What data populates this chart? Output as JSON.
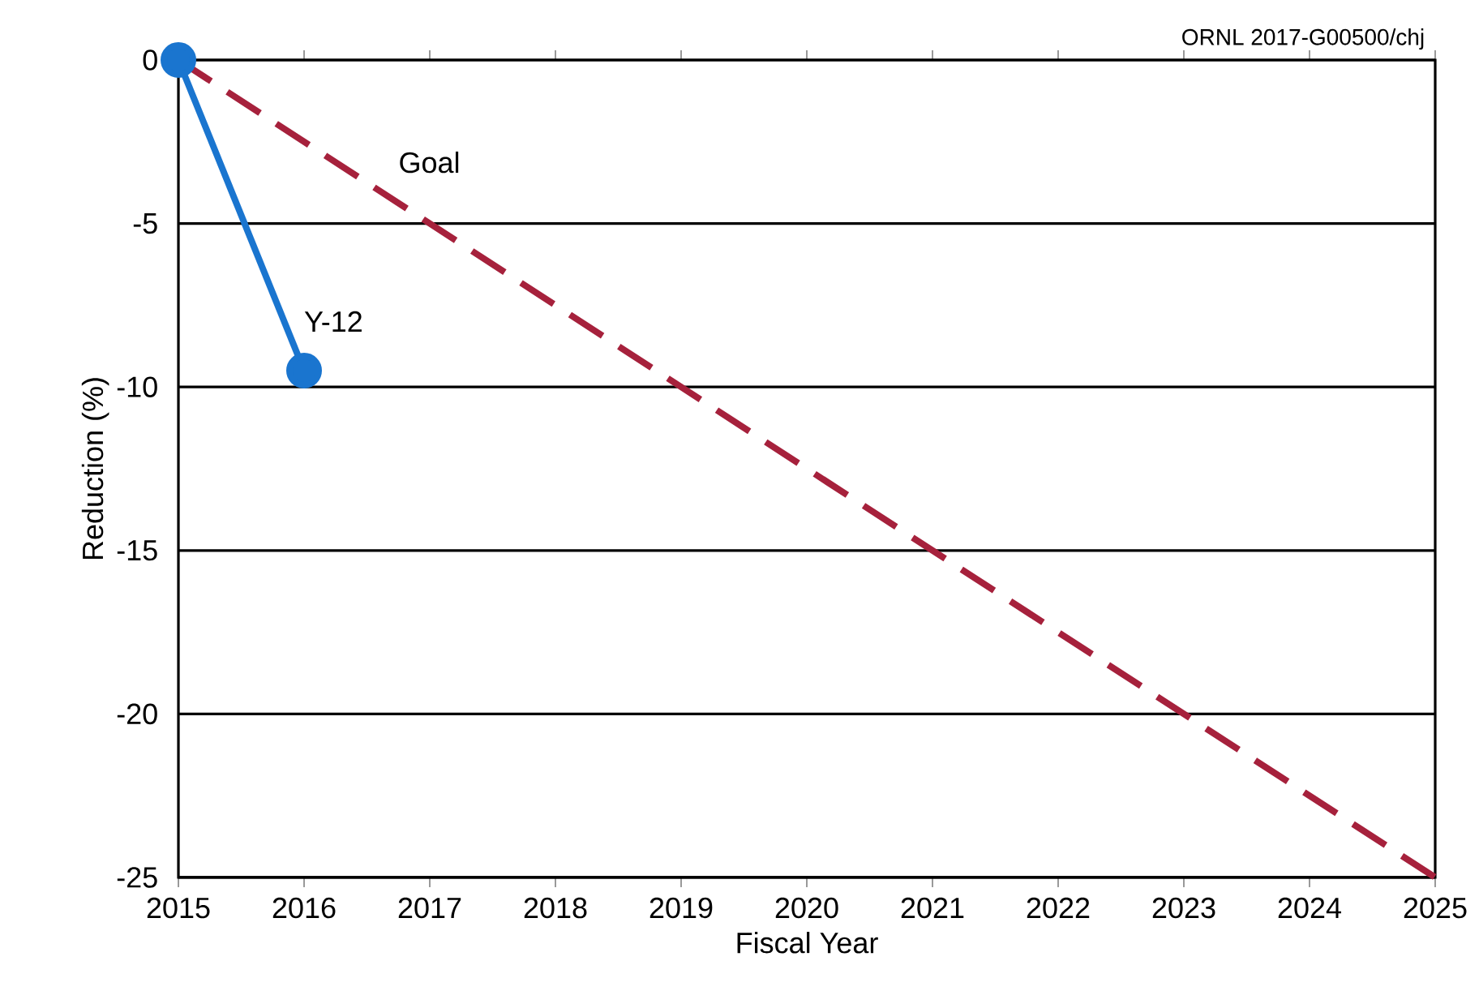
{
  "chart_data": {
    "type": "line",
    "xlabel": "Fiscal Year",
    "ylabel": "Reduction (%)",
    "annotations": [
      "ORNL 2017-G00500/chj"
    ],
    "series": [
      {
        "name": "Y-12",
        "color": "#1a75cf",
        "x": [
          2015,
          2016
        ],
        "values": [
          0,
          -9.5
        ],
        "marker": "circle",
        "line_style": "solid"
      },
      {
        "name": "Goal",
        "color": "#a6213c",
        "x": [
          2015,
          2025
        ],
        "values": [
          0,
          -25
        ],
        "marker": "none",
        "line_style": "dashed"
      }
    ],
    "xlim": [
      2015,
      2025
    ],
    "xticks": [
      2015,
      2016,
      2017,
      2018,
      2019,
      2020,
      2021,
      2022,
      2023,
      2024,
      2025
    ],
    "ylim": [
      -25,
      0
    ],
    "yticks": [
      -25,
      -20,
      -15,
      -10,
      -5,
      0
    ],
    "grid": "y",
    "legend": false
  }
}
